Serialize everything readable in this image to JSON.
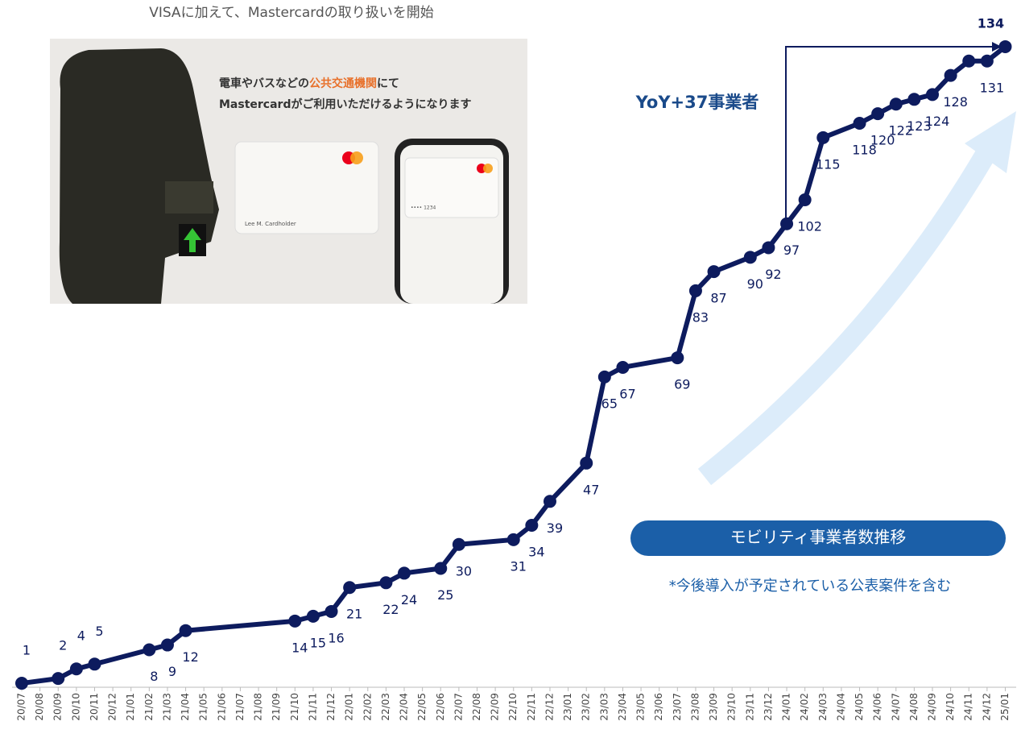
{
  "chart_data": {
    "type": "line",
    "caption": "VISAに加えて、Mastercardの取り扱いを開始",
    "image_text": {
      "line1_a": "電車やバスなどの",
      "line1_b": "公共交通機関",
      "line1_c": "にて",
      "line2": "Mastercardがご利用いただけるようになります",
      "cardholder": "Lee M. Cardholder",
      "card_number": "•••• 1234"
    },
    "annotation": "YoY+37事業者",
    "badge": "モビリティ事業者数推移",
    "note": "*今後導入が予定されている公表案件を含む",
    "categories": [
      "20/07",
      "20/08",
      "20/09",
      "20/10",
      "20/11",
      "20/12",
      "21/01",
      "21/02",
      "21/03",
      "21/04",
      "21/05",
      "21/06",
      "21/07",
      "21/08",
      "21/09",
      "21/10",
      "21/11",
      "21/12",
      "22/01",
      "22/02",
      "22/03",
      "22/04",
      "22/05",
      "22/06",
      "22/07",
      "22/08",
      "22/09",
      "22/10",
      "22/11",
      "22/12",
      "23/01",
      "23/02",
      "23/03",
      "23/04",
      "23/05",
      "23/06",
      "23/07",
      "23/08",
      "23/09",
      "23/10",
      "23/11",
      "23/12",
      "24/01",
      "24/02",
      "24/03",
      "24/04",
      "24/05",
      "24/06",
      "24/07",
      "24/08",
      "24/09",
      "24/10",
      "24/11",
      "24/12",
      "25/01"
    ],
    "ylim": [
      0,
      135
    ],
    "series": [
      {
        "color": "#0d1b5e",
        "x": [
          "20/07",
          "20/09",
          "20/10",
          "20/11",
          "21/02",
          "21/03",
          "21/04",
          "21/10",
          "21/11",
          "21/12",
          "22/01",
          "22/03",
          "22/04",
          "22/06",
          "22/07",
          "22/10",
          "22/11",
          "22/12",
          "23/02",
          "23/03",
          "23/04",
          "23/07",
          "23/08",
          "23/09",
          "23/11",
          "23/12",
          "24/01",
          "24/02",
          "24/03",
          "24/05",
          "24/06",
          "24/07",
          "24/08",
          "24/09",
          "24/10",
          "24/11",
          "24/12",
          "25/01"
        ],
        "values": [
          1,
          2,
          4,
          5,
          8,
          9,
          12,
          14,
          15,
          16,
          21,
          22,
          24,
          25,
          30,
          31,
          34,
          39,
          47,
          65,
          67,
          69,
          83,
          87,
          90,
          92,
          97,
          102,
          115,
          118,
          120,
          122,
          123,
          124,
          128,
          131,
          131,
          134
        ],
        "value_labels": [
          "1",
          "2",
          "4",
          "5",
          "8",
          "9",
          "12",
          "14",
          "15",
          "16",
          "21",
          "22",
          "24",
          "25",
          "30",
          "31",
          "34",
          "39",
          "47",
          "65",
          "67",
          "69",
          "83",
          "87",
          "90",
          "92",
          "97",
          "102",
          "115",
          "118",
          "120",
          "122",
          "123",
          "124",
          "128",
          null,
          "131",
          "134"
        ]
      }
    ]
  }
}
